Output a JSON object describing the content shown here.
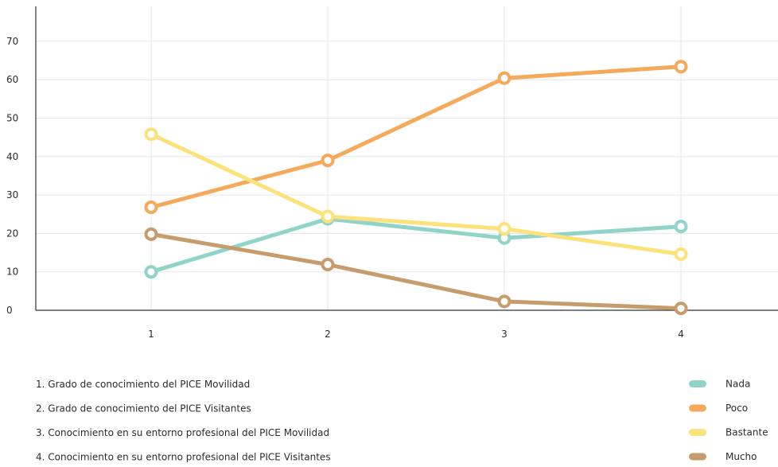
{
  "chart_data": {
    "type": "line",
    "x": [
      1,
      2,
      3,
      4
    ],
    "x_tick_labels": [
      "1",
      "2",
      "3",
      "4"
    ],
    "y_ticks": [
      0,
      10,
      20,
      30,
      40,
      50,
      60,
      70
    ],
    "ylim": [
      0,
      78
    ],
    "grid": true,
    "legend_position": "bottom-right",
    "series": [
      {
        "name": "Nada",
        "color": "#8fd3c9",
        "values": [
          10,
          23.8,
          18.8,
          21.8
        ]
      },
      {
        "name": "Poco",
        "color": "#f5a95b",
        "values": [
          26.8,
          39,
          60.4,
          63.4
        ]
      },
      {
        "name": "Bastante",
        "color": "#fbe27a",
        "values": [
          45.8,
          24.4,
          21.2,
          14.6
        ]
      },
      {
        "name": "Mucho",
        "color": "#c69c6d",
        "values": [
          19.8,
          11.9,
          2.3,
          0.5
        ]
      }
    ],
    "category_notes": [
      "1. Grado de conocimiento del PICE Movilidad",
      "2. Grado de conocimiento del PICE Visitantes",
      "3. Conocimiento en su entorno profesional del PICE Movilidad",
      "4. Conocimiento en su entorno profesional del PICE Visitantes"
    ]
  }
}
